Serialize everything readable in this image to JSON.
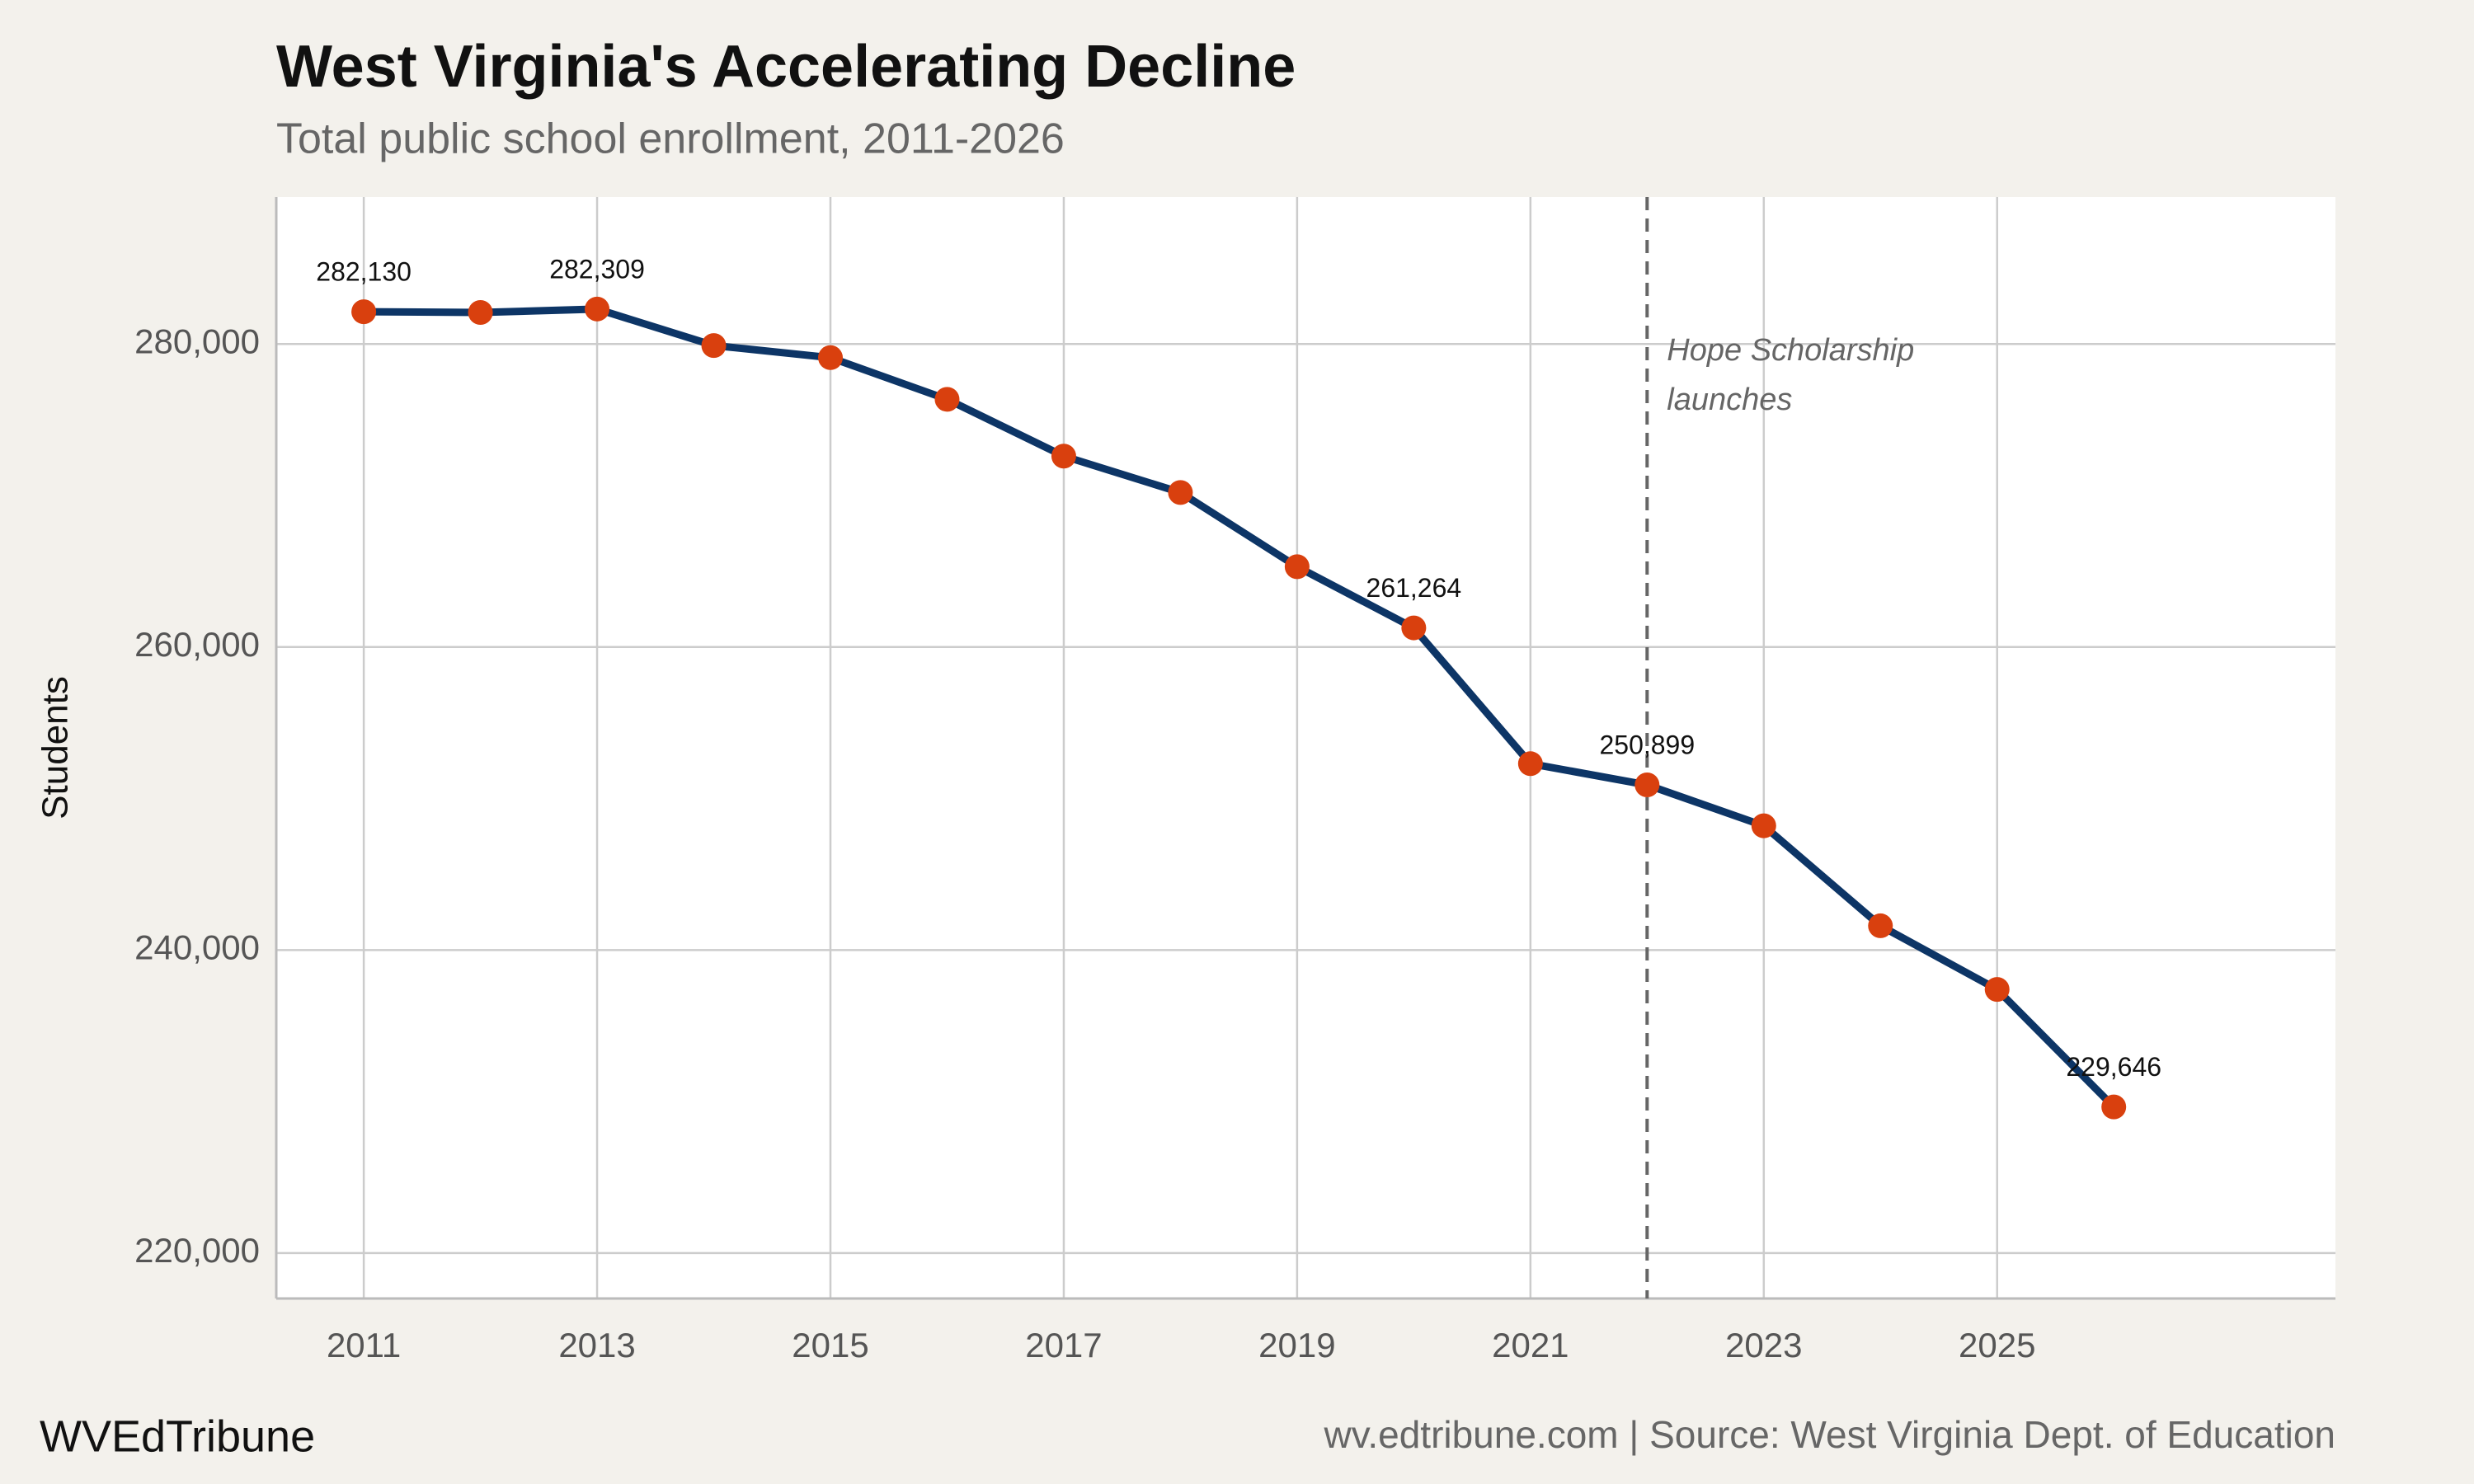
{
  "chart_data": {
    "type": "line",
    "title": "West Virginia's Accelerating Decline",
    "subtitle": "Total public school enrollment, 2011-2026",
    "y_label": "Students",
    "x": [
      2011,
      2012,
      2013,
      2014,
      2015,
      2016,
      2017,
      2018,
      2019,
      2020,
      2021,
      2022,
      2023,
      2024,
      2025,
      2026
    ],
    "series": [
      {
        "color": "#0d3566",
        "marker_color": "#d9400e",
        "values": [
          282130,
          282080,
          282309,
          279900,
          279100,
          276350,
          272600,
          270200,
          265300,
          261264,
          252300,
          250899,
          248200,
          241600,
          237400,
          229646
        ],
        "value_labels": [
          "282,130",
          null,
          "282,309",
          null,
          null,
          null,
          null,
          null,
          null,
          "261,264",
          null,
          "250,899",
          null,
          null,
          null,
          "229,646"
        ]
      }
    ],
    "xlim": [
      2010.25,
      2027.9
    ],
    "ylim": [
      217000,
      289700
    ],
    "xticks": [
      2011,
      2013,
      2015,
      2017,
      2019,
      2021,
      2023,
      2025
    ],
    "yticks": [
      {
        "value": 220000,
        "label": "220,000"
      },
      {
        "value": 240000,
        "label": "240,000"
      },
      {
        "value": 260000,
        "label": "260,000"
      },
      {
        "value": 280000,
        "label": "280,000"
      }
    ],
    "grid": true,
    "annotation": {
      "x": 2022,
      "lines": [
        "Hope Scholarship",
        "launches"
      ]
    },
    "footer_left": "WVEdTribune",
    "footer_right": "wv.edtribune.com | Source: West Virginia Dept. of Education"
  }
}
